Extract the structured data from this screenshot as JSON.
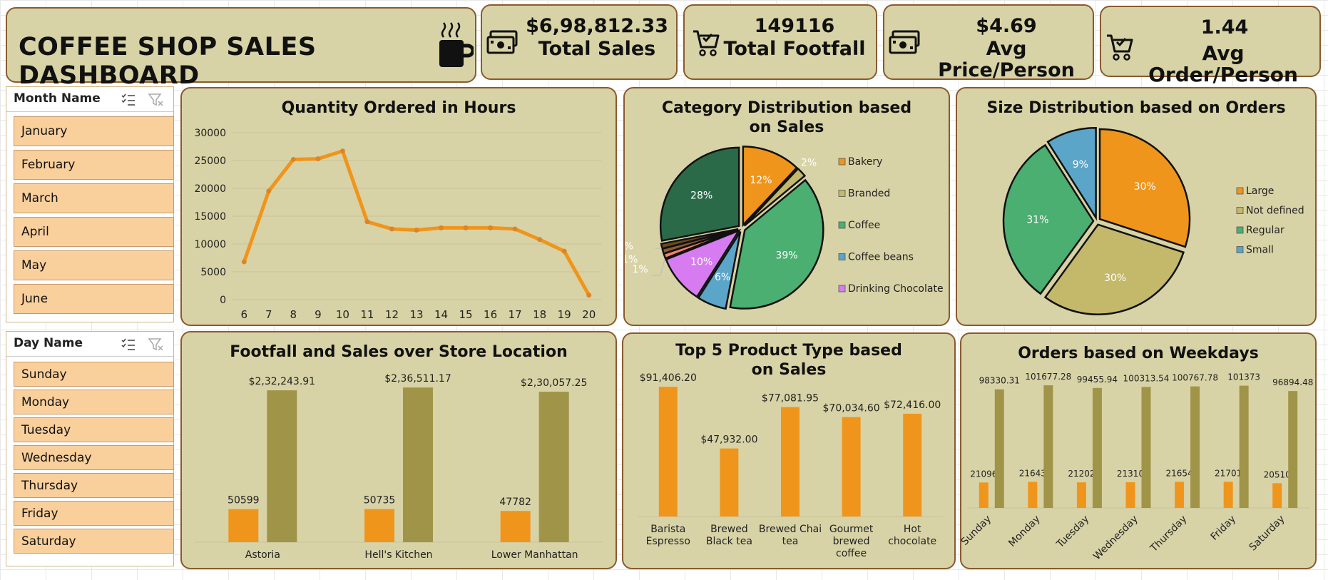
{
  "dashboard": {
    "title": "COFFEE SHOP SALES DASHBOARD"
  },
  "kpis": [
    {
      "value": "$6,98,812.33",
      "label": "Total Sales",
      "icon": "money-icon"
    },
    {
      "value": "149116",
      "label": "Total Footfall",
      "icon": "cart-icon"
    },
    {
      "value": "$4.69",
      "label": "Avg Price/Person",
      "icon": "money-icon"
    },
    {
      "value": "1.44",
      "label": "Avg Order/Person",
      "icon": "cart-icon"
    }
  ],
  "slicers": {
    "month": {
      "title": "Month Name",
      "items": [
        "January",
        "February",
        "March",
        "April",
        "May",
        "June"
      ]
    },
    "day": {
      "title": "Day Name",
      "items": [
        "Sunday",
        "Monday",
        "Tuesday",
        "Wednesday",
        "Thursday",
        "Friday",
        "Saturday"
      ]
    }
  },
  "colors": {
    "orange": "#f0951c",
    "olive": "#a09448",
    "panel": "#d8d3a6",
    "border": "#8a5a2e"
  },
  "chart_data": [
    {
      "type": "line",
      "title": "Quantity Ordered in Hours",
      "x": [
        6,
        7,
        8,
        9,
        10,
        11,
        12,
        13,
        14,
        15,
        16,
        17,
        18,
        19,
        20
      ],
      "values": [
        6800,
        19500,
        25200,
        25300,
        26700,
        14000,
        12700,
        12500,
        12900,
        12900,
        12900,
        12700,
        10800,
        8700,
        800
      ],
      "y_ticks": [
        "0",
        "5000",
        "10000",
        "15000",
        "20000",
        "25000",
        "30000"
      ],
      "ylim": [
        0,
        30000
      ],
      "grid": true
    },
    {
      "type": "pie",
      "title": "Category Distribution based on Sales",
      "slices": [
        {
          "name": "Bakery",
          "value": 12,
          "label": "12%",
          "color": "#f0951c"
        },
        {
          "name": "Branded",
          "value": 2,
          "label": "2%",
          "color": "#c4b86a"
        },
        {
          "name": "Coffee",
          "value": 39,
          "label": "39%",
          "color": "#4aaf70"
        },
        {
          "name": "Coffee beans",
          "value": 6,
          "label": "6%",
          "color": "#5aa5c8"
        },
        {
          "name": "Drinking Chocolate",
          "value": 10,
          "label": "10%",
          "color": "#d67cf0"
        },
        {
          "name": "",
          "value": 1,
          "label": "1%",
          "color": "#f08070"
        },
        {
          "name": "",
          "value": 1,
          "label": "1%",
          "color": "#8a5a2e"
        },
        {
          "name": "",
          "value": 1,
          "label": "1%",
          "color": "#6a4a20"
        },
        {
          "name": "",
          "value": 28,
          "label": "28%",
          "color": "#2a6a48"
        }
      ],
      "legend": [
        "Bakery",
        "Branded",
        "Coffee",
        "Coffee beans",
        "Drinking Chocolate"
      ]
    },
    {
      "type": "pie",
      "title": "Size Distribution based on Orders",
      "slices": [
        {
          "name": "Large",
          "value": 30,
          "label": "30%",
          "color": "#f0951c"
        },
        {
          "name": "Not defined",
          "value": 30,
          "label": "30%",
          "color": "#c4b86a"
        },
        {
          "name": "Regular",
          "value": 31,
          "label": "31%",
          "color": "#4aaf70"
        },
        {
          "name": "Small",
          "value": 9,
          "label": "9%",
          "color": "#5aa5c8"
        }
      ],
      "legend": [
        "Large",
        "Not defined",
        "Regular",
        "Small"
      ]
    },
    {
      "type": "bar",
      "title": "Footfall and Sales over Store Location",
      "categories": [
        "Astoria",
        "Hell's Kitchen",
        "Lower Manhattan"
      ],
      "series": [
        {
          "values": [
            50599,
            50735,
            47782
          ],
          "labels": [
            "50599",
            "50735",
            "47782"
          ]
        },
        {
          "values": [
            232243.91,
            236511.17,
            230057.25
          ],
          "labels": [
            "$2,32,243.91",
            "$2,36,511.17",
            "$2,30,057.25"
          ]
        }
      ]
    },
    {
      "type": "bar",
      "title": "Top 5 Product Type based on Sales",
      "categories": [
        "Barista Espresso",
        "Brewed Black tea",
        "Brewed Chai tea",
        "Gourmet brewed coffee",
        "Hot chocolate"
      ],
      "category_lines": [
        [
          "Barista",
          "Espresso"
        ],
        [
          "Brewed",
          "Black tea"
        ],
        [
          "Brewed Chai",
          "tea"
        ],
        [
          "Gourmet",
          "brewed",
          "coffee"
        ],
        [
          "Hot",
          "chocolate"
        ]
      ],
      "values": [
        91406.2,
        47932.0,
        77081.95,
        70034.6,
        72416.0
      ],
      "labels": [
        "$91,406.20",
        "$47,932.00",
        "$77,081.95",
        "$70,034.60",
        "$72,416.00"
      ]
    },
    {
      "type": "bar",
      "title": "Orders based on Weekdays",
      "categories": [
        "Sunday",
        "Monday",
        "Tuesday",
        "Wednesday",
        "Thursday",
        "Friday",
        "Saturday"
      ],
      "series": [
        {
          "values": [
            21096,
            21643,
            21202,
            21310,
            21654,
            21701,
            20510
          ],
          "labels": [
            "21096",
            "21643",
            "21202",
            "21310",
            "21654",
            "21701",
            "20510"
          ]
        },
        {
          "values": [
            98330.31,
            101677.28,
            99455.94,
            100313.54,
            100767.78,
            101373,
            96894.48
          ],
          "labels": [
            "98330.31",
            "101677.28",
            "99455.94",
            "100313.54",
            "100767.78",
            "101373",
            "96894.48"
          ]
        }
      ]
    }
  ]
}
